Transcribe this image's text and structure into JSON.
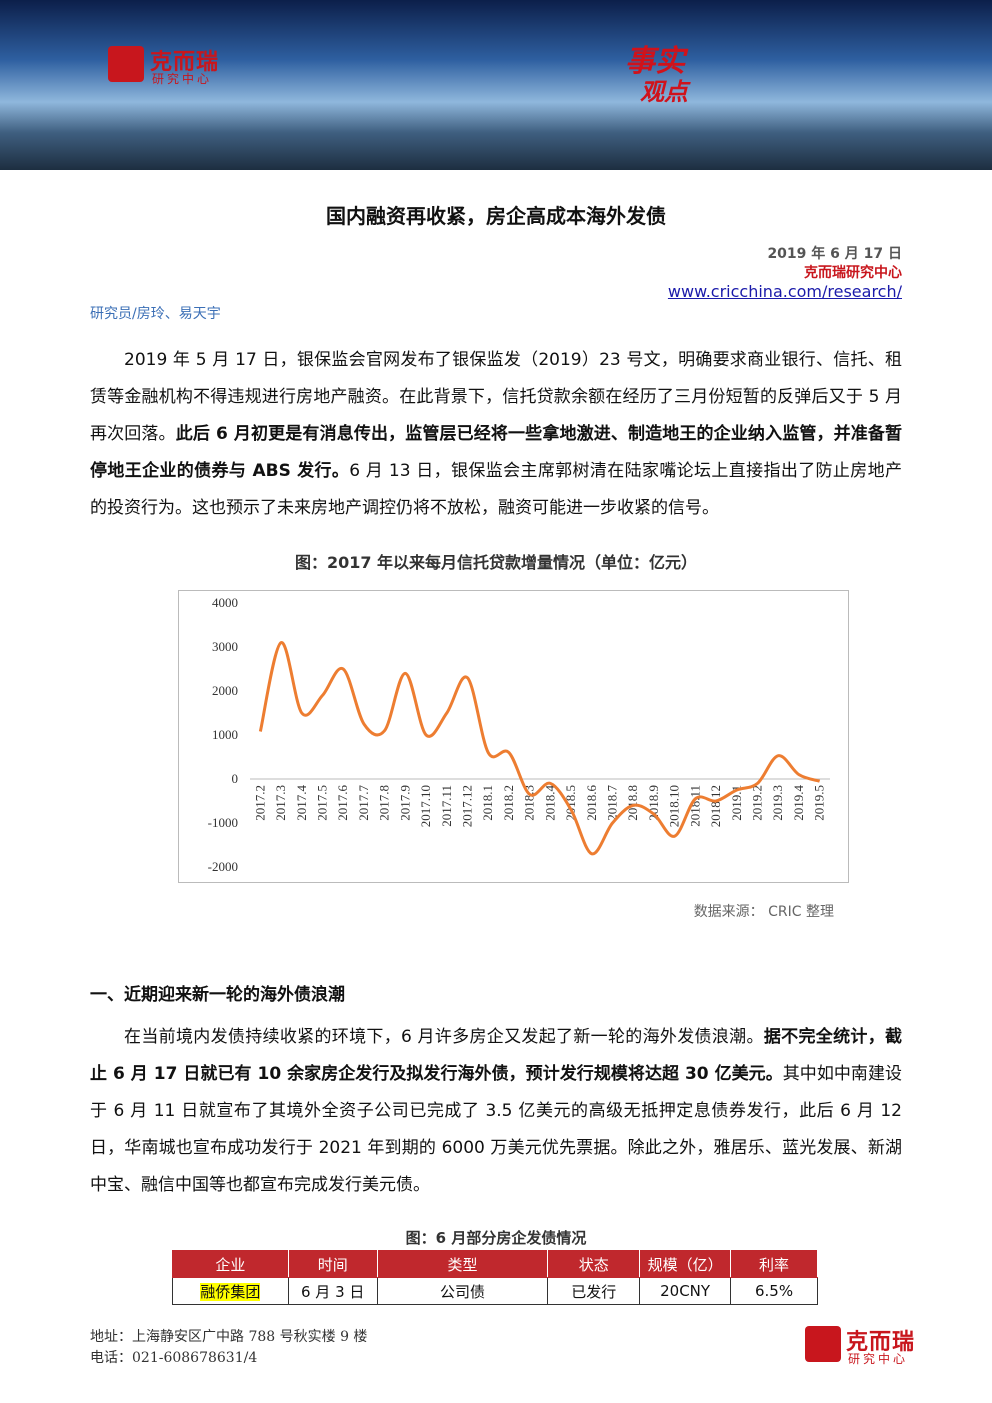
{
  "header": {
    "logo_name": "克而瑞",
    "logo_sub": "研究中心",
    "slogan_1": "事实",
    "slogan_2": "观点"
  },
  "title": "国内融资再收紧，房企高成本海外发债",
  "meta": {
    "date": "2019 年 6 月 17 日",
    "org": "克而瑞研究中心",
    "url": "www.cricchina.com/research/"
  },
  "authors": "研究员/房玲、易天宇",
  "paragraphs": [
    {
      "segments": [
        {
          "text": "2019 年 5 月 17 日，银保监会官网发布了银保监发（2019）23 号文，明确要求商业银行、信托、租赁等金融机构不得违规进行房地产融资。在此背景下，信托贷款余额在经历了三月份短暂的反弹后又于 5 月再次回落。",
          "bold": false
        },
        {
          "text": "此后 6 月初更是有消息传出，监管层已经将一些拿地激进、制造地王的企业纳入监管，并准备暂停地王企业的债券与 ABS 发行。",
          "bold": true
        },
        {
          "text": "6 月 13 日，银保监会主席郭树清在陆家嘴论坛上直接指出了防止房地产的投资行为。这也预示了未来房地产调控仍将不放松，融资可能进一步收紧的信号。",
          "bold": false
        }
      ]
    },
    {
      "segments": [
        {
          "text": "在当前境内发债持续收紧的环境下，6 月许多房企又发起了新一轮的海外发债浪潮。",
          "bold": false
        },
        {
          "text": "据不完全统计，截止 6 月 17 日就已有 10 余家房企发行及拟发行海外债，预计发行规模将达超 30 亿美元。",
          "bold": true
        },
        {
          "text": "其中如中南建设于 6 月 11 日就宣布了其境外全资子公司已完成了 3.5 亿美元的高级无抵押定息债券发行，此后 6 月 12 日，华南城也宣布成功发行于 2021 年到期的 6000 万美元优先票据。除此之外，雅居乐、蓝光发展、新湖中宝、融信中国等也都宣布完成发行美元债。",
          "bold": false
        }
      ]
    }
  ],
  "chart_data": {
    "type": "line",
    "title": "图：2017 年以来每月信托贷款增量情况（单位：亿元）",
    "source": "数据来源： CRIC 整理",
    "categories": [
      "2017.2",
      "2017.3",
      "2017.4",
      "2017.5",
      "2017.6",
      "2017.7",
      "2017.8",
      "2017.9",
      "2017.10",
      "2017.11",
      "2017.12",
      "2018.1",
      "2018.2",
      "2018.3",
      "2018.4",
      "2018.5",
      "2018.6",
      "2018.7",
      "2018.8",
      "2018.9",
      "2018.10",
      "2018.11",
      "2018.12",
      "2019.1",
      "2019.2",
      "2019.3",
      "2019.4",
      "2019.5"
    ],
    "values": [
      1080,
      3100,
      1500,
      1900,
      2500,
      1250,
      1100,
      2400,
      1000,
      1500,
      2300,
      600,
      600,
      -350,
      -100,
      -700,
      -1700,
      -1000,
      -600,
      -800,
      -1300,
      -450,
      -500,
      -250,
      -100,
      530,
      100,
      -50
    ],
    "color": "#ed7d31",
    "smooth": true,
    "ylim": [
      -2000,
      4000
    ],
    "yticks": [
      4000,
      3000,
      2000,
      1000,
      0,
      -1000,
      -2000
    ]
  },
  "section_heading": "一、近期迎来新一轮的海外债浪潮",
  "table": {
    "title": "图：6 月部分房企发债情况",
    "header": [
      "企业",
      "时间",
      "类型",
      "状态",
      "规模（亿）",
      "利率"
    ],
    "rows": [
      [
        "融侨集团",
        "6 月 3 日",
        "公司债",
        "已发行",
        "20CNY",
        "6.5%"
      ]
    ],
    "highlight_first_column": true
  },
  "footer": {
    "address": "地址：上海静安区广中路 788 号秋实楼 9 楼",
    "phone": "电话：021-60867863",
    "page": "1/4",
    "logo_name": "克而瑞",
    "logo_sub": "研究中心"
  }
}
